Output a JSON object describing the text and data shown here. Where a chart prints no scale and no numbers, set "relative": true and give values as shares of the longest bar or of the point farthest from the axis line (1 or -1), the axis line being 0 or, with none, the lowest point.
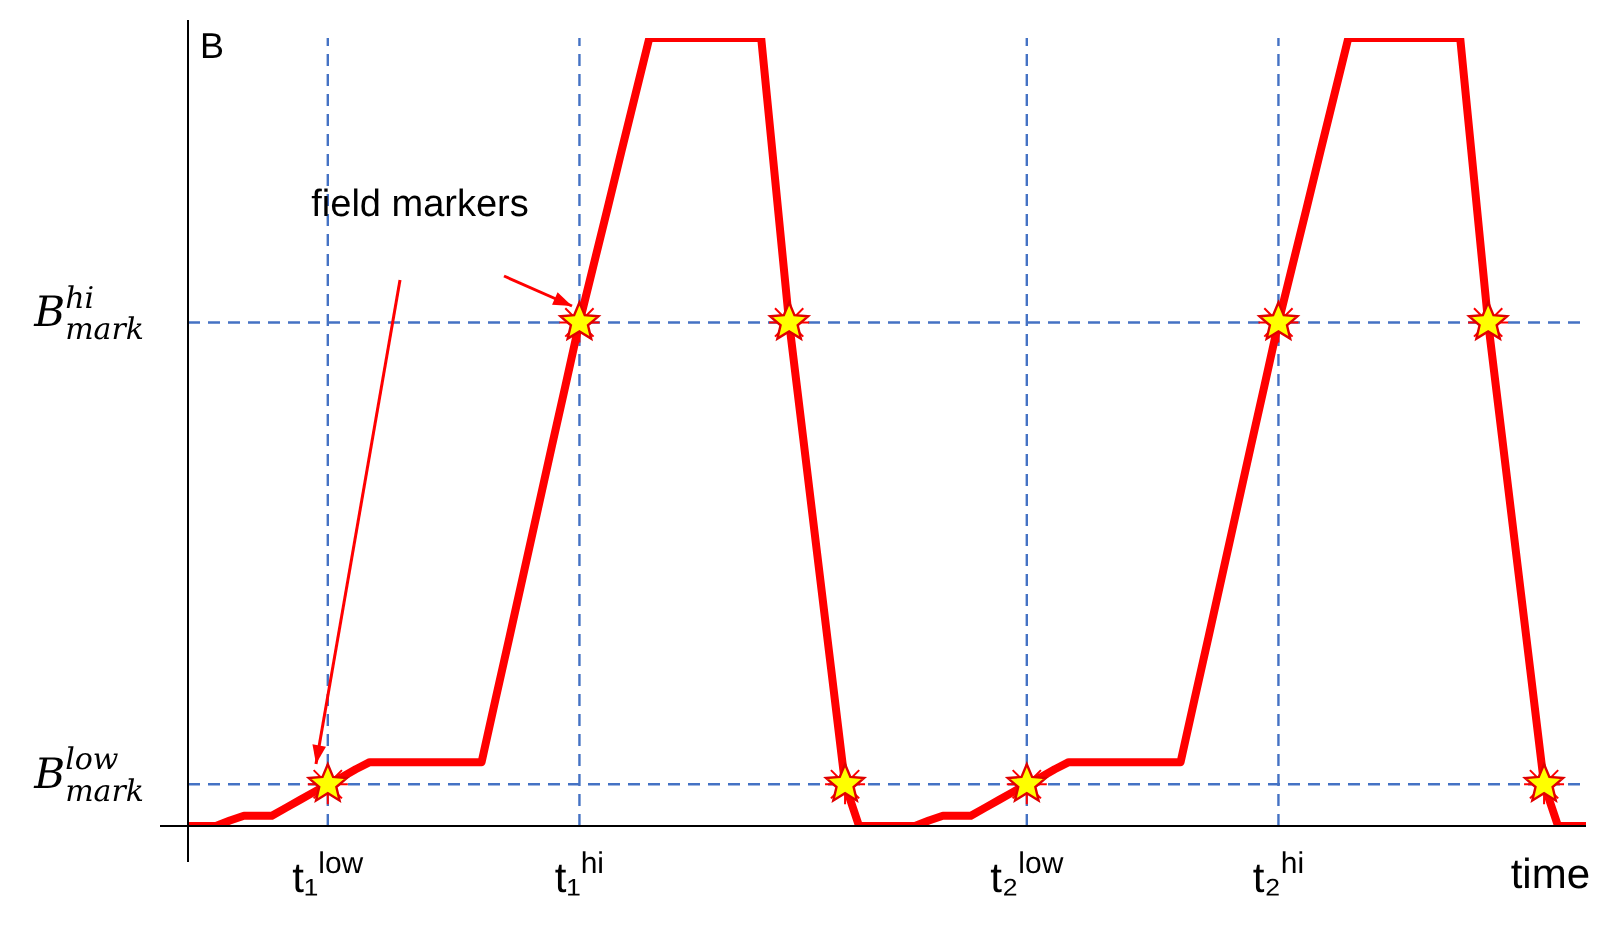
{
  "chart_data": {
    "type": "line",
    "relative": true,
    "xlabel": "time",
    "ylabel": "B",
    "categories": [
      null,
      null,
      null,
      null,
      null,
      null,
      null,
      null,
      null,
      null,
      "t₁$^{low}$",
      null,
      null,
      null,
      null,
      null,
      null,
      null,
      null,
      null,
      null,
      null,
      null,
      null,
      null,
      null,
      null,
      null,
      "t₁$^{hi}$",
      null,
      null,
      null,
      null,
      null,
      null,
      null,
      null,
      null,
      null,
      null,
      null,
      null,
      null,
      null,
      null,
      null,
      null,
      null,
      null,
      null,
      null,
      null,
      null,
      null,
      null,
      null,
      null,
      null,
      null,
      null,
      "t₂$^{low}$",
      null,
      null,
      null,
      null,
      null,
      null,
      null,
      null,
      null,
      null,
      null,
      null,
      null,
      null,
      null,
      null,
      null,
      "t₂$^{hi}$",
      null,
      null,
      null,
      null,
      null,
      null,
      null,
      null,
      null,
      null,
      null,
      null,
      null,
      null,
      null,
      null,
      null,
      null,
      null,
      null,
      null,
      null
    ],
    "ref_lines": [
      {
        "axis": "y",
        "value": 0.639,
        "label": "B$^{hi}$$_{mark}$",
        "color": "#4472c4",
        "line_style": "dashed"
      },
      {
        "axis": "y",
        "value": 0.053,
        "label": "B$^{low}$$_{mark}$",
        "color": "#4472c4",
        "line_style": "dashed"
      },
      {
        "axis": "x",
        "value": "t₁$^{low}$",
        "color": "#4472c4",
        "line_style": "dashed"
      },
      {
        "axis": "x",
        "value": "t₁$^{hi}$",
        "color": "#4472c4",
        "line_style": "dashed"
      },
      {
        "axis": "x",
        "value": "t₂$^{low}$",
        "color": "#4472c4",
        "line_style": "dashed"
      },
      {
        "axis": "x",
        "value": "t₂$^{hi}$",
        "color": "#4472c4",
        "line_style": "dashed"
      }
    ],
    "annotations": [
      "field markers"
    ],
    "series": [
      {
        "color": "#ff0000",
        "marker": "none",
        "values": [
          0,
          0,
          0,
          0.007,
          0.013,
          0.013,
          0.013,
          0.023,
          0.033,
          0.043,
          0.053,
          0.062,
          0.072,
          0.081,
          0.081,
          0.081,
          0.081,
          0.081,
          0.081,
          0.081,
          0.081,
          0.081,
          0.161,
          0.24,
          0.32,
          0.4,
          0.48,
          0.559,
          0.639,
          0.711,
          0.783,
          0.856,
          0.928,
          1,
          1,
          1,
          1,
          1,
          1,
          1,
          1,
          1,
          0.82,
          0.639,
          0.493,
          0.346,
          0.2,
          0.053,
          0,
          0,
          0,
          0,
          0,
          0.007,
          0.013,
          0.013,
          0.013,
          0.023,
          0.033,
          0.043,
          0.053,
          0.062,
          0.072,
          0.081,
          0.081,
          0.081,
          0.081,
          0.081,
          0.081,
          0.081,
          0.081,
          0.081,
          0.161,
          0.24,
          0.32,
          0.4,
          0.48,
          0.559,
          0.639,
          0.711,
          0.783,
          0.856,
          0.928,
          1,
          1,
          1,
          1,
          1,
          1,
          1,
          1,
          1,
          0.82,
          0.639,
          0.493,
          0.346,
          0.2,
          0.053,
          0,
          0,
          0
        ]
      },
      {
        "type": "scatter",
        "color": "#ffff00",
        "marker": "star",
        "values": [
          null,
          null,
          null,
          null,
          null,
          null,
          null,
          null,
          null,
          null,
          0.053,
          null,
          null,
          null,
          null,
          null,
          null,
          null,
          null,
          null,
          null,
          null,
          null,
          null,
          null,
          null,
          null,
          null,
          0.639,
          null,
          null,
          null,
          null,
          null,
          null,
          null,
          null,
          null,
          null,
          null,
          null,
          null,
          null,
          0.639,
          null,
          null,
          null,
          0.053,
          null,
          null,
          null,
          null,
          null,
          null,
          null,
          null,
          null,
          null,
          null,
          null,
          0.053,
          null,
          null,
          null,
          null,
          null,
          null,
          null,
          null,
          null,
          null,
          null,
          null,
          null,
          null,
          null,
          null,
          null,
          0.639,
          null,
          null,
          null,
          null,
          null,
          null,
          null,
          null,
          null,
          null,
          null,
          null,
          null,
          null,
          0.639,
          null,
          null,
          null,
          0.053,
          null,
          null,
          null
        ]
      }
    ]
  }
}
